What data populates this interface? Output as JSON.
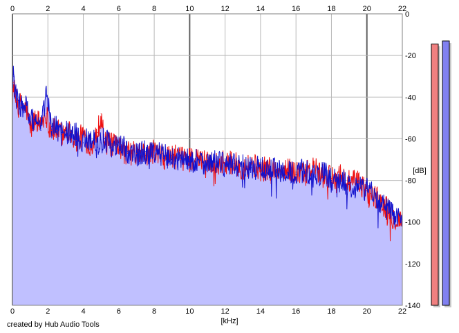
{
  "footer": {
    "credit": "created by Hub Audio Tools"
  },
  "chart_data": {
    "type": "area",
    "title": "",
    "xlabel": "[kHz]",
    "ylabel": "[dB]",
    "xlim": [
      0,
      22
    ],
    "ylim": [
      -140,
      0
    ],
    "x_ticks": [
      "0",
      "2",
      "4",
      "6",
      "8",
      "10",
      "12",
      "14",
      "16",
      "18",
      "20",
      "22"
    ],
    "y_ticks": [
      "0",
      "-20",
      "-40",
      "-60",
      "-80",
      "-100",
      "-120",
      "-140"
    ],
    "grid": true,
    "colors": {
      "fill": "#c0c0ff",
      "left_channel": "#ee1111",
      "right_channel": "#1111cc",
      "grid": "#b8b8b8",
      "grid_major": "#606060",
      "meter_left": "#f08080",
      "meter_right": "#8080f0"
    },
    "series": [
      {
        "color": "#ee1111",
        "x": [
          0.05,
          0.2,
          0.5,
          0.8,
          1.0,
          1.3,
          1.6,
          1.9,
          2.2,
          2.5,
          2.8,
          3.0,
          3.3,
          3.6,
          4.0,
          4.4,
          4.8,
          5.0,
          5.2,
          5.6,
          6.0,
          6.5,
          7.0,
          7.5,
          8.0,
          8.5,
          9.0,
          9.5,
          10.0,
          10.5,
          11.0,
          11.5,
          12.0,
          12.5,
          13.0,
          13.5,
          14.0,
          14.5,
          15.0,
          15.5,
          16.0,
          16.5,
          17.0,
          17.5,
          18.0,
          18.5,
          19.0,
          19.5,
          20.0,
          20.5,
          21.0,
          21.5,
          22.0
        ],
        "values": [
          -33,
          -42,
          -44,
          -46,
          -56,
          -50,
          -53,
          -48,
          -56,
          -56,
          -58,
          -55,
          -57,
          -61,
          -58,
          -63,
          -57,
          -48,
          -62,
          -63,
          -65,
          -67,
          -67,
          -68,
          -66,
          -69,
          -68,
          -70,
          -69,
          -71,
          -70,
          -72,
          -71,
          -72,
          -74,
          -72,
          -75,
          -74,
          -76,
          -75,
          -76,
          -77,
          -74,
          -78,
          -79,
          -77,
          -81,
          -81,
          -85,
          -88,
          -92,
          -98,
          -99
        ]
      },
      {
        "color": "#1111cc",
        "x": [
          0.05,
          0.2,
          0.5,
          0.8,
          1.0,
          1.3,
          1.6,
          1.9,
          2.2,
          2.5,
          2.8,
          3.0,
          3.3,
          3.6,
          4.0,
          4.4,
          4.8,
          5.0,
          5.2,
          5.6,
          6.0,
          6.5,
          7.0,
          7.5,
          8.0,
          8.5,
          9.0,
          9.5,
          10.0,
          10.5,
          11.0,
          11.5,
          12.0,
          12.5,
          13.0,
          13.5,
          14.0,
          14.5,
          15.0,
          15.5,
          16.0,
          16.5,
          17.0,
          17.5,
          18.0,
          18.5,
          19.0,
          19.5,
          20.0,
          20.5,
          21.0,
          21.5,
          22.0
        ],
        "values": [
          -30,
          -40,
          -45,
          -44,
          -52,
          -50,
          -56,
          -37,
          -54,
          -55,
          -57,
          -56,
          -59,
          -58,
          -62,
          -59,
          -64,
          -62,
          -60,
          -64,
          -63,
          -66,
          -68,
          -66,
          -68,
          -67,
          -70,
          -69,
          -71,
          -70,
          -72,
          -71,
          -73,
          -72,
          -73,
          -74,
          -74,
          -75,
          -75,
          -76,
          -77,
          -75,
          -78,
          -76,
          -80,
          -80,
          -82,
          -83,
          -84,
          -87,
          -93,
          -96,
          -100
        ]
      }
    ],
    "level_meters": [
      {
        "color": "#f08080",
        "level_db": -14.5
      },
      {
        "color": "#8080f0",
        "level_db": -13
      }
    ]
  }
}
